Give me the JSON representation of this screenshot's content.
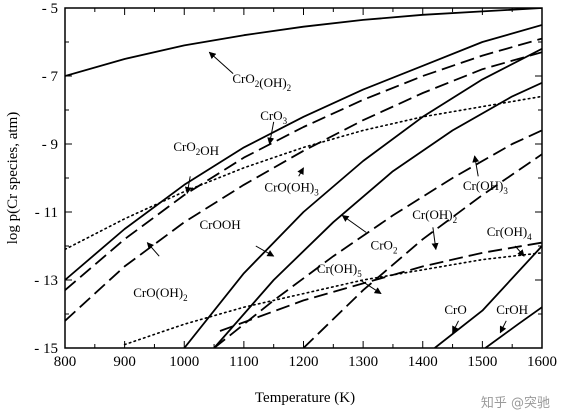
{
  "watermark": "知乎 @突驰",
  "chart_data": {
    "type": "line",
    "xlabel": "Temperature (K)",
    "ylabel": "log p(Cr species, atm)",
    "xlim": [
      800,
      1600
    ],
    "ylim": [
      -15,
      -5
    ],
    "x_ticks": [
      800,
      900,
      1000,
      1100,
      1200,
      1300,
      1400,
      1500,
      1600
    ],
    "y_ticks": [
      -5,
      -7,
      -9,
      -11,
      -13,
      -15
    ],
    "grid": false,
    "colors": {
      "line": "#000000",
      "background": "#ffffff"
    },
    "series": [
      {
        "key": "s1",
        "style": "solid",
        "x": [
          800,
          900,
          1000,
          1100,
          1200,
          1300,
          1400,
          1500,
          1600
        ],
        "y": [
          -7.0,
          -6.5,
          -6.1,
          -5.8,
          -5.55,
          -5.35,
          -5.2,
          -5.1,
          -5.0
        ]
      },
      {
        "key": "s2",
        "style": "solid",
        "x": [
          800,
          900,
          1000,
          1100,
          1200,
          1300,
          1400,
          1500,
          1600
        ],
        "y": [
          -13.0,
          -11.5,
          -10.2,
          -9.1,
          -8.2,
          -7.4,
          -6.7,
          -6.0,
          -5.5
        ]
      },
      {
        "key": "s3",
        "style": "dashed",
        "x": [
          800,
          900,
          1000,
          1100,
          1200,
          1300,
          1400,
          1500,
          1600
        ],
        "y": [
          -13.3,
          -11.8,
          -10.5,
          -9.4,
          -8.5,
          -7.7,
          -7.0,
          -6.4,
          -5.9
        ]
      },
      {
        "key": "s4",
        "style": "dashed",
        "x": [
          800,
          900,
          1000,
          1100,
          1200,
          1300,
          1400,
          1500,
          1600
        ],
        "y": [
          -14.2,
          -12.6,
          -11.3,
          -10.2,
          -9.2,
          -8.3,
          -7.5,
          -6.8,
          -6.3
        ]
      },
      {
        "key": "s5",
        "style": "dotted",
        "x": [
          800,
          900,
          1000,
          1100,
          1200,
          1300,
          1400,
          1500,
          1600
        ],
        "y": [
          -12.1,
          -11.2,
          -10.4,
          -9.7,
          -9.1,
          -8.6,
          -8.2,
          -7.9,
          -7.6
        ]
      },
      {
        "key": "s6",
        "style": "solid",
        "x": [
          1000,
          1100,
          1200,
          1300,
          1400,
          1500,
          1600
        ],
        "y": [
          -15.0,
          -12.8,
          -11.0,
          -9.5,
          -8.2,
          -7.1,
          -6.2
        ]
      },
      {
        "key": "s7",
        "style": "solid",
        "x": [
          1050,
          1150,
          1250,
          1350,
          1450,
          1550,
          1600
        ],
        "y": [
          -15.0,
          -13.0,
          -11.3,
          -9.8,
          -8.6,
          -7.6,
          -7.2
        ]
      },
      {
        "key": "s8",
        "style": "dashed",
        "x": [
          1050,
          1150,
          1250,
          1350,
          1450,
          1550,
          1600
        ],
        "y": [
          -15.0,
          -13.6,
          -12.3,
          -11.1,
          -10.0,
          -9.0,
          -8.6
        ]
      },
      {
        "key": "s9",
        "style": "dashed",
        "x": [
          1200,
          1300,
          1400,
          1500,
          1600
        ],
        "y": [
          -15.0,
          -13.3,
          -11.8,
          -10.5,
          -9.3
        ]
      },
      {
        "key": "s10",
        "style": "dashed",
        "x": [
          1060,
          1200,
          1300,
          1400,
          1500,
          1600
        ],
        "y": [
          -14.5,
          -13.6,
          -13.1,
          -12.6,
          -12.2,
          -11.9
        ]
      },
      {
        "key": "s11",
        "style": "dotted",
        "x": [
          900,
          1000,
          1100,
          1200,
          1300,
          1400,
          1500,
          1600
        ],
        "y": [
          -14.9,
          -14.3,
          -13.8,
          -13.4,
          -13.0,
          -12.7,
          -12.4,
          -12.2
        ]
      },
      {
        "key": "s12",
        "style": "solid",
        "x": [
          1420,
          1500,
          1600
        ],
        "y": [
          -15.0,
          -13.9,
          -12.0
        ]
      },
      {
        "key": "s13",
        "style": "solid",
        "x": [
          1505,
          1560,
          1600
        ],
        "y": [
          -15.0,
          -14.3,
          -13.8
        ]
      }
    ],
    "annotations": [
      {
        "id": "CrO2(OH)2-upper",
        "parts": [
          [
            "CrO",
            0
          ],
          [
            "2",
            -1
          ],
          [
            "(OH)",
            0
          ],
          [
            "2",
            -1
          ]
        ],
        "label_at": [
          1130,
          -7.2
        ],
        "arrow_from": [
          1082,
          -6.93
        ],
        "arrow_to": [
          1042,
          -6.3
        ]
      },
      {
        "id": "CrO3",
        "parts": [
          [
            "CrO",
            0
          ],
          [
            "3",
            -1
          ]
        ],
        "label_at": [
          1150,
          -8.3
        ],
        "arrow_from": [
          1150,
          -8.35
        ],
        "arrow_to": [
          1143,
          -9.0
        ]
      },
      {
        "id": "CrO2OH",
        "parts": [
          [
            "CrO",
            0
          ],
          [
            "2",
            -1
          ],
          [
            "OH",
            0
          ]
        ],
        "label_at": [
          1020,
          -9.2
        ],
        "arrow_from": [
          1010,
          -9.95
        ],
        "arrow_to": [
          1005,
          -10.45
        ]
      },
      {
        "id": "CrO(OH)3",
        "parts": [
          [
            "CrO(OH)",
            0
          ],
          [
            "3",
            -1
          ]
        ],
        "label_at": [
          1180,
          -10.4
        ],
        "arrow_from": [
          1192,
          -9.95
        ],
        "arrow_to": [
          1200,
          -9.7
        ]
      },
      {
        "id": "CrOOH",
        "parts": [
          [
            "CrOOH",
            0
          ]
        ],
        "label_at": [
          1060,
          -11.5
        ],
        "arrow_from": [
          1120,
          -12.0
        ],
        "arrow_to": [
          1150,
          -12.3
        ]
      },
      {
        "id": "CrO(OH)2-lower",
        "parts": [
          [
            "CrO(OH)",
            0
          ],
          [
            "2",
            -1
          ]
        ],
        "label_at": [
          960,
          -13.5
        ],
        "arrow_from": [
          958,
          -12.3
        ],
        "arrow_to": [
          938,
          -11.9
        ]
      },
      {
        "id": "Cr(OH)3",
        "parts": [
          [
            "Cr(OH)",
            0
          ],
          [
            "3",
            -1
          ]
        ],
        "label_at": [
          1505,
          -10.35
        ],
        "arrow_from": [
          1493,
          -9.95
        ],
        "arrow_to": [
          1487,
          -9.35
        ]
      },
      {
        "id": "CrO2",
        "parts": [
          [
            "CrO",
            0
          ],
          [
            "2",
            -1
          ]
        ],
        "label_at": [
          1335,
          -12.1
        ],
        "arrow_from": [
          1305,
          -11.6
        ],
        "arrow_to": [
          1265,
          -11.1
        ]
      },
      {
        "id": "Cr(OH)2",
        "parts": [
          [
            "Cr(OH)",
            0
          ],
          [
            "2",
            -1
          ]
        ],
        "label_at": [
          1420,
          -11.2
        ],
        "arrow_from": [
          1417,
          -11.45
        ],
        "arrow_to": [
          1422,
          -12.1
        ]
      },
      {
        "id": "Cr(OH)4",
        "parts": [
          [
            "Cr(OH)",
            0
          ],
          [
            "4",
            -1
          ]
        ],
        "label_at": [
          1545,
          -11.7
        ],
        "arrow_from": [
          1555,
          -12.0
        ],
        "arrow_to": [
          1570,
          -12.3
        ]
      },
      {
        "id": "Cr(OH)5",
        "parts": [
          [
            "Cr(OH)",
            0
          ],
          [
            "5",
            -1
          ]
        ],
        "label_at": [
          1260,
          -12.8
        ],
        "arrow_from": [
          1295,
          -13.0
        ],
        "arrow_to": [
          1330,
          -13.4
        ]
      },
      {
        "id": "CrO",
        "parts": [
          [
            "CrO",
            0
          ]
        ],
        "label_at": [
          1455,
          -14.0
        ],
        "arrow_from": [
          1460,
          -14.2
        ],
        "arrow_to": [
          1450,
          -14.55
        ]
      },
      {
        "id": "CrOH",
        "parts": [
          [
            "CrOH",
            0
          ]
        ],
        "label_at": [
          1550,
          -14.0
        ],
        "arrow_from": [
          1540,
          -14.2
        ],
        "arrow_to": [
          1530,
          -14.55
        ]
      }
    ]
  }
}
